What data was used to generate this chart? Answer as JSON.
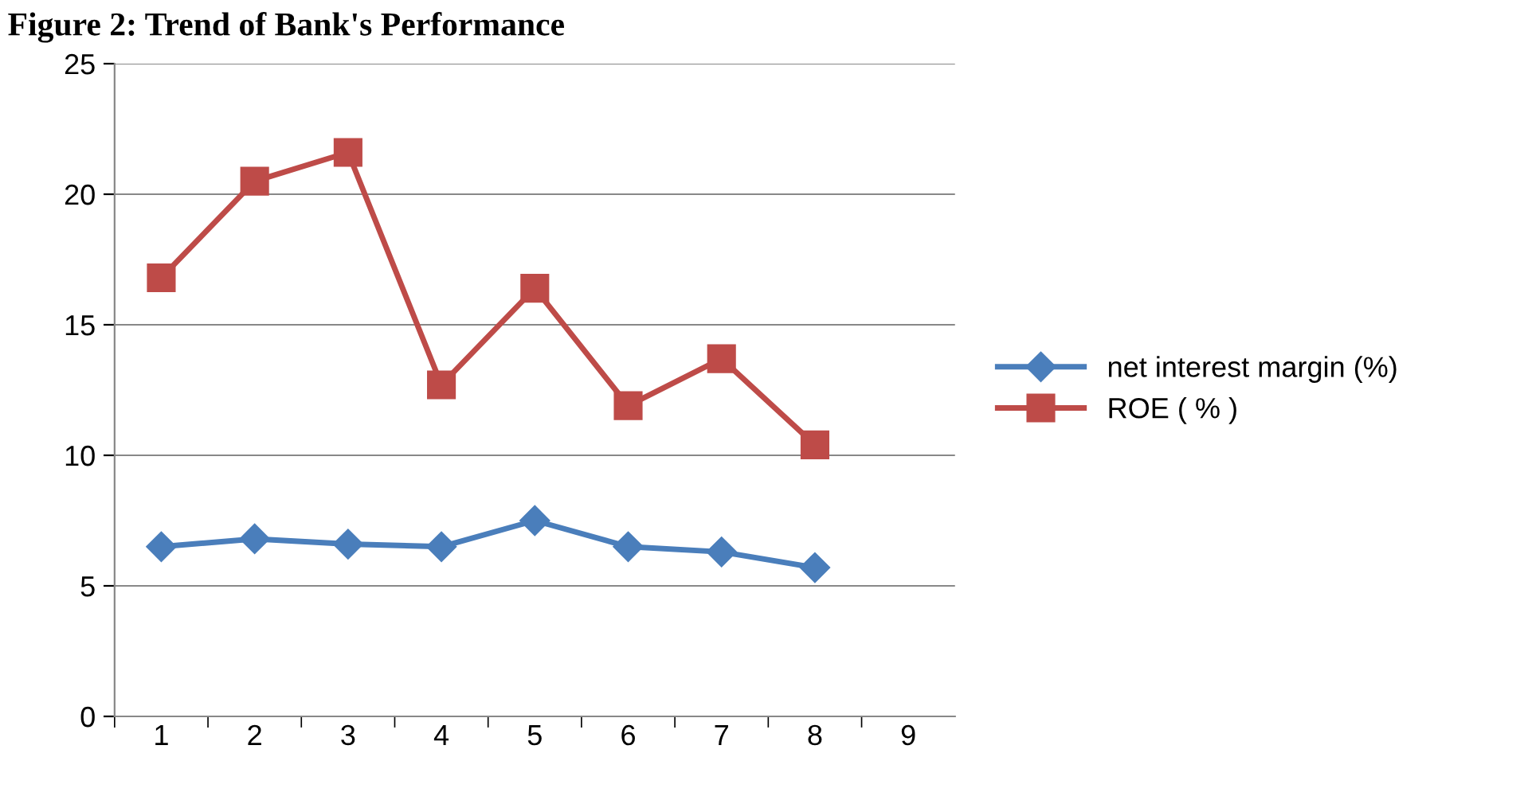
{
  "chart_data": {
    "type": "line",
    "title": "Figure 2: Trend of Bank's Performance",
    "categories": [
      "1",
      "2",
      "3",
      "4",
      "5",
      "6",
      "7",
      "8",
      "9"
    ],
    "series": [
      {
        "name": "net interest margin (%)",
        "color": "#4a7ebb",
        "marker": "diamond",
        "values": [
          6.5,
          6.8,
          6.6,
          6.5,
          7.5,
          6.5,
          6.3,
          5.7,
          null
        ]
      },
      {
        "name": "ROE ( % )",
        "color": "#be4b48",
        "marker": "square",
        "values": [
          16.8,
          20.5,
          21.6,
          12.7,
          16.4,
          11.9,
          13.7,
          10.4,
          null
        ]
      }
    ],
    "ylim": [
      0,
      25
    ],
    "yticks": [
      0,
      5,
      10,
      15,
      20,
      25
    ],
    "grid": "y",
    "legend": "right"
  }
}
